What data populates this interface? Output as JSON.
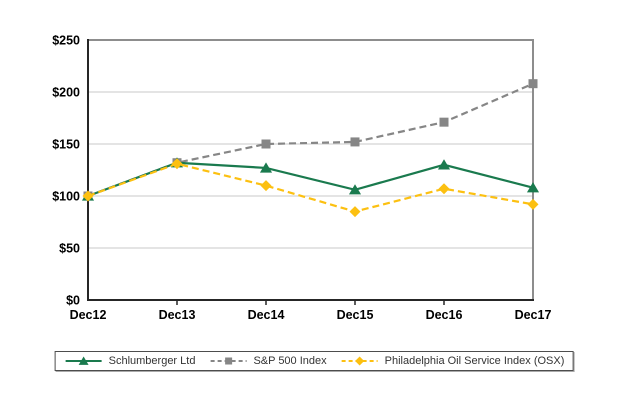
{
  "chart_data": {
    "type": "line",
    "x_labels": [
      "Dec12",
      "Dec13",
      "Dec14",
      "Dec15",
      "Dec16",
      "Dec17"
    ],
    "y_ticks": [
      {
        "value": 0,
        "label": "$0"
      },
      {
        "value": 50,
        "label": "$50"
      },
      {
        "value": 100,
        "label": "$100"
      },
      {
        "value": 150,
        "label": "$150"
      },
      {
        "value": 200,
        "label": "$200"
      },
      {
        "value": 250,
        "label": "$250"
      }
    ],
    "ylim": [
      0,
      250
    ],
    "grid": true,
    "legend_position": "bottom",
    "series": [
      {
        "name": "Schlumberger Ltd",
        "values": [
          100,
          132,
          127,
          106,
          130,
          108
        ],
        "color": "#1a7a4e",
        "marker": "triangle",
        "line_style": "solid"
      },
      {
        "name": "S&P 500 Index",
        "values": [
          100,
          132,
          150,
          152,
          171,
          208
        ],
        "color": "#868686",
        "marker": "square",
        "line_style": "dashed"
      },
      {
        "name": "Philadelphia Oil Service Index (OSX)",
        "values": [
          100,
          131,
          110,
          85,
          107,
          92
        ],
        "color": "#fcc011",
        "marker": "diamond",
        "line_style": "dashed"
      }
    ]
  },
  "colors": {
    "background": "#ffffff",
    "gridline": "#c9c9c9",
    "axis": "#262626",
    "plot_border": "#8d8d8d",
    "legend_border": "#4d4d4d",
    "tick_label": "#000000",
    "legend_text": "#333333"
  }
}
